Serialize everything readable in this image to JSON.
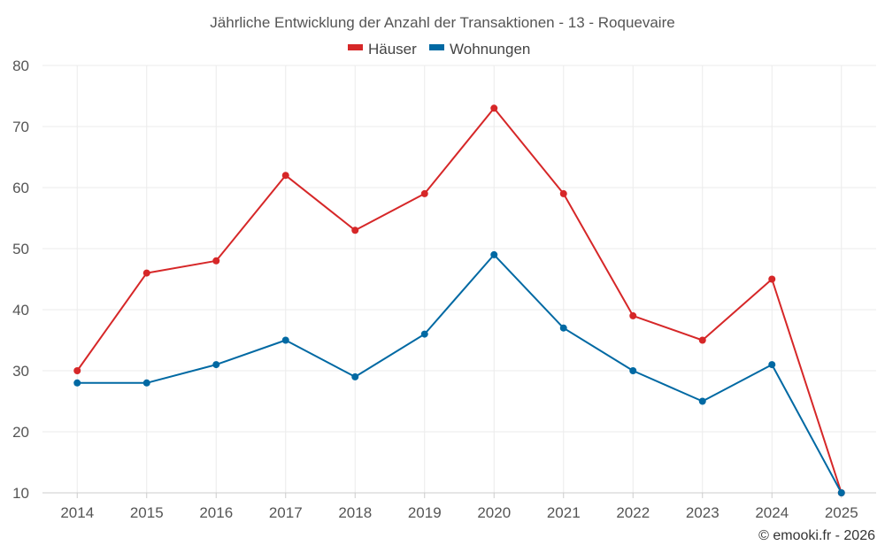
{
  "chart_data": {
    "type": "line",
    "title": "Jährliche Entwicklung der Anzahl der Transaktionen - 13 - Roquevaire",
    "categories": [
      "2014",
      "2015",
      "2016",
      "2017",
      "2018",
      "2019",
      "2020",
      "2021",
      "2022",
      "2023",
      "2024",
      "2025"
    ],
    "series": [
      {
        "name": "Häuser",
        "color": "#d62728",
        "values": [
          30,
          46,
          48,
          62,
          53,
          59,
          73,
          59,
          39,
          35,
          45,
          10
        ]
      },
      {
        "name": "Wohnungen",
        "color": "#0069a3",
        "values": [
          28,
          28,
          31,
          35,
          29,
          36,
          49,
          37,
          30,
          25,
          31,
          10
        ]
      }
    ],
    "ylim": [
      10,
      80
    ],
    "yticks": [
      10,
      20,
      30,
      40,
      50,
      60,
      70,
      80
    ],
    "grid": true,
    "legend_position": "top-center",
    "xlabel": "",
    "ylabel": ""
  },
  "credit": "© emooki.fr - 2026"
}
